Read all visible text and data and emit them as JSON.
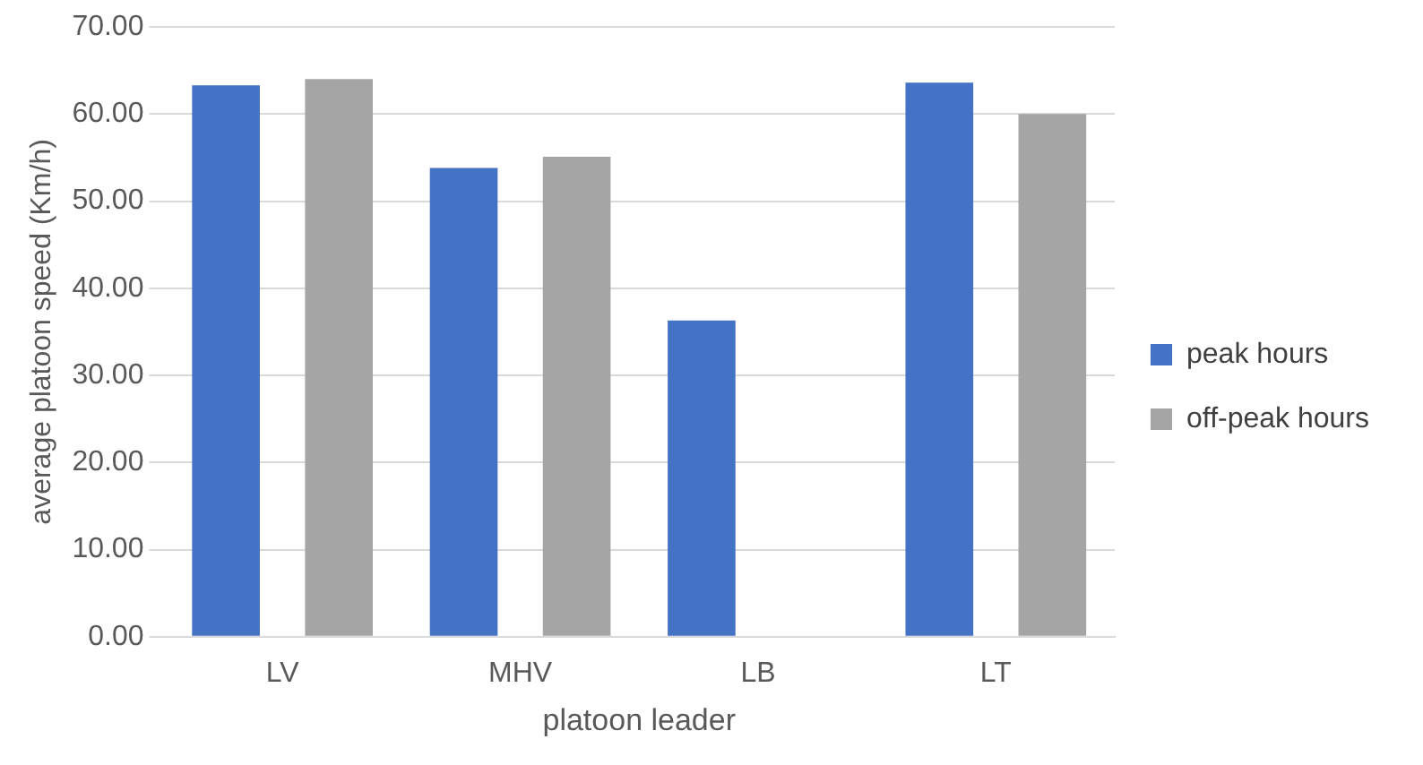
{
  "chart_data": {
    "type": "bar",
    "xlabel": "platoon leader",
    "ylabel": "average platoon speed (Km/h)",
    "categories": [
      "LV",
      "MHV",
      "LB",
      "LT"
    ],
    "series": [
      {
        "name": "peak hours",
        "color": "#4472c4",
        "values": [
          63.3,
          53.8,
          36.3,
          63.6
        ]
      },
      {
        "name": "off-peak hours",
        "color": "#a5a5a5",
        "values": [
          64.0,
          55.1,
          0,
          60.0
        ]
      }
    ],
    "ylim": [
      0,
      70
    ],
    "yticks": [
      {
        "value": 0,
        "label": "0.00"
      },
      {
        "value": 10,
        "label": "10.00"
      },
      {
        "value": 20,
        "label": "20.00"
      },
      {
        "value": 30,
        "label": "30.00"
      },
      {
        "value": 40,
        "label": "40.00"
      },
      {
        "value": 50,
        "label": "50.00"
      },
      {
        "value": 60,
        "label": "60.00"
      },
      {
        "value": 70,
        "label": "70.00"
      }
    ],
    "grid": "y",
    "legend": "right"
  }
}
